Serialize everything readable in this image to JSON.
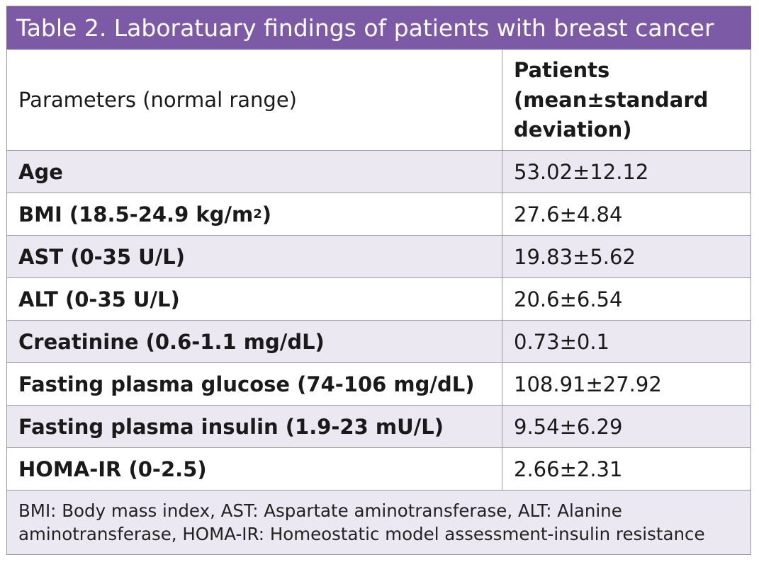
{
  "table": {
    "title": "Table 2. Laboratuary findings of patients with breast cancer",
    "header": {
      "param": "Parameters (normal range)",
      "patients": "Patients (mean±standard deviation)"
    },
    "rows": [
      {
        "param": "Age",
        "value": "53.02±12.12"
      },
      {
        "param_prefix": "BMI (18.5-24.9 kg/m",
        "param_sup": "2",
        "param_suffix": ")",
        "value": "27.6±4.84"
      },
      {
        "param": "AST (0-35 U/L)",
        "value": "19.83±5.62"
      },
      {
        "param": "ALT (0-35 U/L)",
        "value": "20.6±6.54"
      },
      {
        "param": "Creatinine (0.6-1.1 mg/dL)",
        "value": "0.73±0.1"
      },
      {
        "param": "Fasting plasma glucose (74-106 mg/dL)",
        "value": "108.91±27.92"
      },
      {
        "param": "Fasting plasma insulin (1.9-23 mU/L)",
        "value": "9.54±6.29"
      },
      {
        "param": "HOMA-IR (0-2.5)",
        "value": "2.66±2.31"
      }
    ],
    "footnote": "BMI: Body mass index, AST: Aspartate aminotransferase, ALT: Alanine aminotransferase, HOMA-IR: Homeostatic model assessment-insulin resistance"
  },
  "colors": {
    "title_bg": "#7d5aa6",
    "alt_row_bg": "#ece8f2",
    "border": "#9a9a9a"
  }
}
